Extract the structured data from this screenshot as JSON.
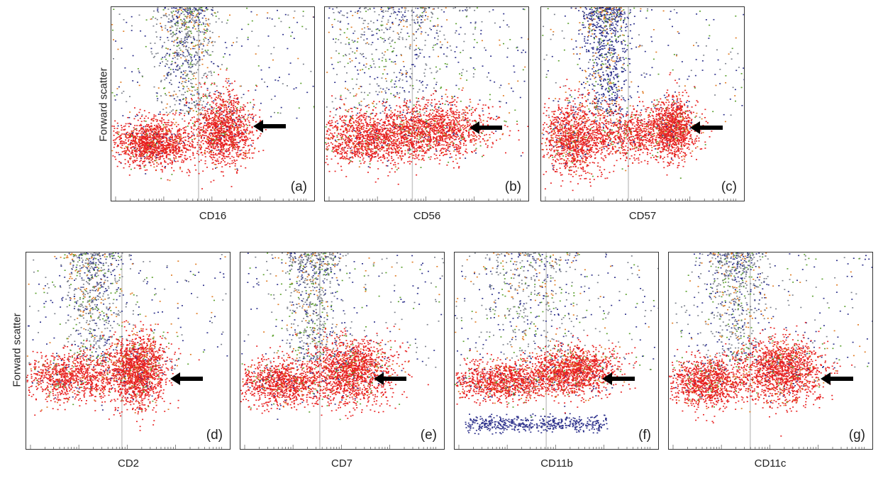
{
  "figure": {
    "y_axis_label": "Forward scatter",
    "panels": [
      {
        "id": "a",
        "letter": "(a)",
        "xlabel": "CD16"
      },
      {
        "id": "b",
        "letter": "(b)",
        "xlabel": "CD56"
      },
      {
        "id": "c",
        "letter": "(c)",
        "xlabel": "CD57"
      },
      {
        "id": "d",
        "letter": "(d)",
        "xlabel": "CD2"
      },
      {
        "id": "e",
        "letter": "(e)",
        "xlabel": "CD7"
      },
      {
        "id": "f",
        "letter": "(f)",
        "xlabel": "CD11b"
      },
      {
        "id": "g",
        "letter": "(g)",
        "xlabel": "CD11c"
      }
    ]
  },
  "colors": {
    "red_population": "#e82020",
    "blue_population": "#2b2f8a",
    "grey_population": "#7a7f8a",
    "green_population": "#5aa02c",
    "orange_population": "#e07a20",
    "gate_line": "#c8c8c8"
  },
  "chart_data": [
    {
      "type": "scatter",
      "panel": "(a)",
      "xlabel": "CD16",
      "ylabel": "Forward scatter",
      "log_x": true,
      "arrow": "points to CD16-positive red cluster",
      "populations": [
        "red: CD16-negative and CD16-positive clusters",
        "grey/blue: high forward scatter events"
      ]
    },
    {
      "type": "scatter",
      "panel": "(b)",
      "xlabel": "CD56",
      "ylabel": "Forward scatter",
      "log_x": true,
      "arrow": "points to CD56-positive red cluster",
      "populations": [
        "red: broad band across CD56",
        "grey/blue: sparse high forward scatter"
      ]
    },
    {
      "type": "scatter",
      "panel": "(c)",
      "xlabel": "CD57",
      "ylabel": "Forward scatter",
      "log_x": true,
      "arrow": "points to CD57-positive red cluster",
      "populations": [
        "red: broad band with positive cluster",
        "blue/grey: vertical column of high forward scatter"
      ]
    },
    {
      "type": "scatter",
      "panel": "(d)",
      "xlabel": "CD2",
      "ylabel": "Forward scatter",
      "log_x": true,
      "arrow": "points to CD2-positive red cluster",
      "populations": [
        "red: band with positive cluster",
        "grey: high forward scatter column"
      ]
    },
    {
      "type": "scatter",
      "panel": "(e)",
      "xlabel": "CD7",
      "ylabel": "Forward scatter",
      "log_x": true,
      "arrow": "points to CD7-positive red cluster",
      "populations": [
        "red: band with positive cluster",
        "grey/blue: high forward scatter column"
      ]
    },
    {
      "type": "scatter",
      "panel": "(f)",
      "xlabel": "CD11b",
      "ylabel": "Forward scatter",
      "log_x": true,
      "arrow": "points to CD11b-positive red cluster",
      "populations": [
        "red: band with positive cluster",
        "blue: low forward scatter band and scattered high events"
      ]
    },
    {
      "type": "scatter",
      "panel": "(g)",
      "xlabel": "CD11c",
      "ylabel": "Forward scatter",
      "log_x": true,
      "arrow": "points to CD11c-positive red cluster",
      "populations": [
        "red: band with positive cluster",
        "grey: high forward scatter column"
      ]
    }
  ]
}
